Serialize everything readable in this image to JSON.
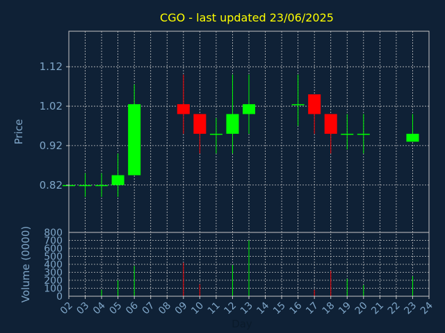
{
  "chart_data": {
    "type": "candlestick",
    "title": "CGO - last updated 23/06/2025",
    "colors": {
      "background": "#0f2136",
      "title": "#ffff00",
      "axis_text": "#7fa6c8",
      "frame": "#c8c8c8",
      "grid": "#c8c8c8",
      "up": "#00ff00",
      "down": "#ff0000"
    },
    "grid": true,
    "price_panel": {
      "ylabel": "Price",
      "ylim": [
        0.7,
        1.21
      ],
      "yticks": [
        0.82,
        0.92,
        1.02,
        1.12
      ],
      "ytick_labels": [
        "0.82",
        "0.92",
        "1.02",
        "1.12"
      ]
    },
    "volume_panel": {
      "ylabel": "Volume (0000)",
      "ylim": [
        0,
        800
      ],
      "yticks": [
        0,
        100,
        200,
        300,
        400,
        500,
        600,
        700,
        800
      ],
      "ytick_labels": [
        "0",
        "100",
        "200",
        "300",
        "400",
        "500",
        "600",
        "700",
        "800"
      ]
    },
    "xlabel": "Day",
    "xlim": [
      2,
      24
    ],
    "xtick_labels": [
      "02",
      "03",
      "04",
      "05",
      "06",
      "07",
      "08",
      "09",
      "10",
      "11",
      "12",
      "13",
      "14",
      "15",
      "16",
      "17",
      "18",
      "19",
      "20",
      "21",
      "22",
      "23",
      "24"
    ],
    "candles": [
      {
        "x": 2,
        "open": 0.82,
        "high": 0.82,
        "low": 0.82,
        "close": 0.82,
        "volume": 0
      },
      {
        "x": 3,
        "open": 0.82,
        "high": 0.85,
        "low": 0.79,
        "close": 0.82,
        "volume": 0
      },
      {
        "x": 4,
        "open": 0.82,
        "high": 0.85,
        "low": 0.79,
        "close": 0.82,
        "volume": 80
      },
      {
        "x": 5,
        "open": 0.82,
        "high": 0.9,
        "low": 0.79,
        "close": 0.845,
        "volume": 200
      },
      {
        "x": 6,
        "open": 0.845,
        "high": 1.075,
        "low": 0.845,
        "close": 1.025,
        "volume": 380
      },
      {
        "x": 9,
        "open": 1.025,
        "high": 1.1,
        "low": 0.95,
        "close": 1.0,
        "volume": 420
      },
      {
        "x": 10,
        "open": 1.0,
        "high": 1.0,
        "low": 0.9,
        "close": 0.95,
        "volume": 150
      },
      {
        "x": 11,
        "open": 0.95,
        "high": 0.99,
        "low": 0.9,
        "close": 0.95,
        "volume": 0
      },
      {
        "x": 12,
        "open": 0.95,
        "high": 1.1,
        "low": 0.9,
        "close": 1.0,
        "volume": 390
      },
      {
        "x": 13,
        "open": 1.0,
        "high": 1.1,
        "low": 0.95,
        "close": 1.025,
        "volume": 700
      },
      {
        "x": 16,
        "open": 1.025,
        "high": 1.1,
        "low": 0.97,
        "close": 1.025,
        "volume": 0
      },
      {
        "x": 17,
        "open": 1.05,
        "high": 1.05,
        "low": 0.95,
        "close": 1.0,
        "volume": 80
      },
      {
        "x": 18,
        "open": 1.0,
        "high": 1.0,
        "low": 0.9,
        "close": 0.95,
        "volume": 320
      },
      {
        "x": 19,
        "open": 0.95,
        "high": 1.0,
        "low": 0.91,
        "close": 0.95,
        "volume": 220
      },
      {
        "x": 20,
        "open": 0.95,
        "high": 1.0,
        "low": 0.9,
        "close": 0.95,
        "volume": 140
      },
      {
        "x": 23,
        "open": 0.93,
        "high": 1.0,
        "low": 0.93,
        "close": 0.95,
        "volume": 250
      }
    ]
  }
}
